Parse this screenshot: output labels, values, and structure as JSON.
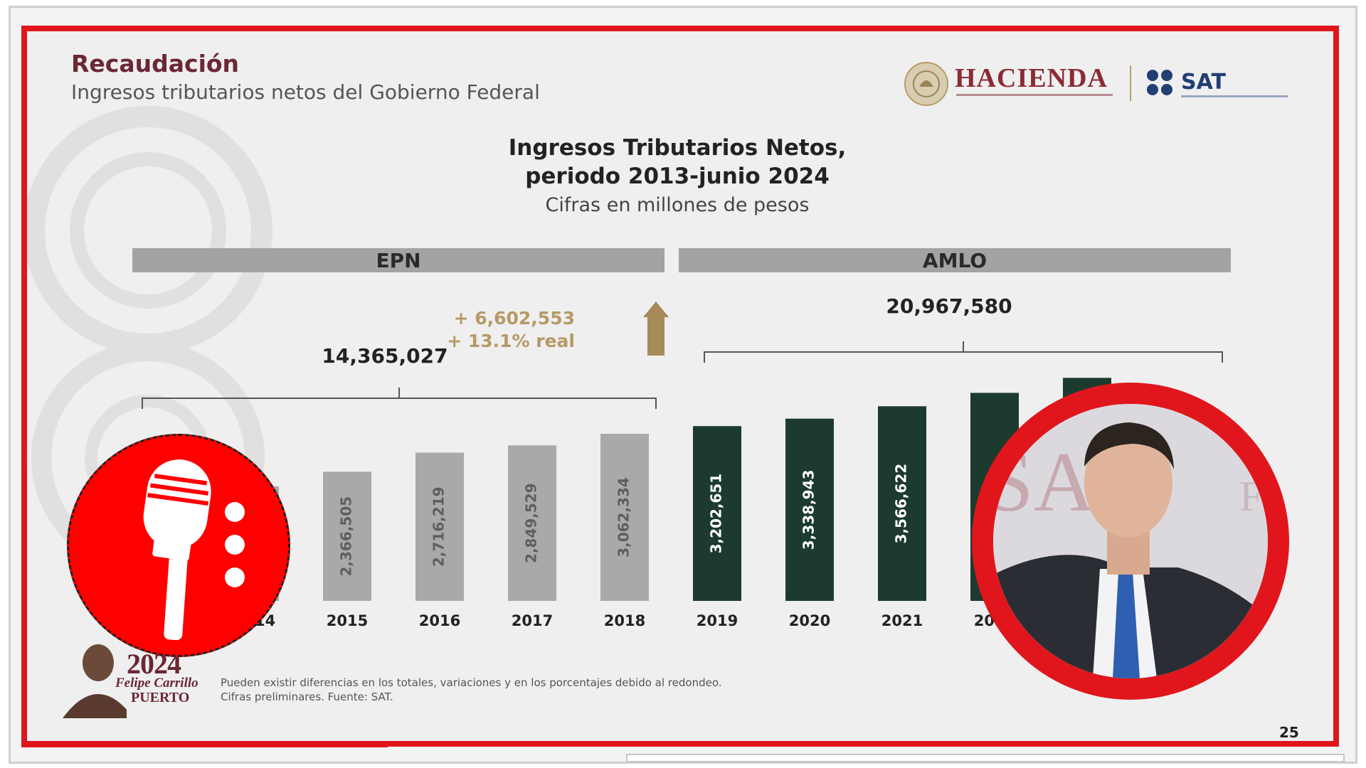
{
  "header": {
    "title": "Recaudación",
    "subtitle": "Ingresos tributarios netos del Gobierno Federal"
  },
  "logos": {
    "hacienda": "HACIENDA",
    "sat": "SAT"
  },
  "chart_data": {
    "type": "bar",
    "title": "Ingresos Tributarios Netos,",
    "title_line2": "periodo 2013-junio 2024",
    "subtitle": "Cifras en millones de pesos",
    "categories": [
      "2014",
      "2015",
      "2016",
      "2017",
      "2018",
      "2019",
      "2020",
      "2021",
      "2022"
    ],
    "values": [
      2100000,
      2366505,
      2716219,
      2849529,
      3062334,
      3202651,
      3338943,
      3566622,
      3812000
    ],
    "value_labels": [
      "",
      "2,366,505",
      "2,716,219",
      "2,849,529",
      "3,062,334",
      "3,202,651",
      "3,338,943",
      "3,566,622",
      ""
    ],
    "extra_bar_value": 4087000,
    "groups": [
      {
        "name": "EPN",
        "total": "14,365,027",
        "color": "#a9a9a9"
      },
      {
        "name": "AMLO",
        "total": "20,967,580",
        "color": "#1d3a2f"
      }
    ],
    "group_of_bar": [
      0,
      0,
      0,
      0,
      0,
      1,
      1,
      1,
      1
    ],
    "difference": {
      "line1": "+ 6,602,553",
      "line2": "+ 13.1% real",
      "color": "#b59a66"
    },
    "ylim": [
      0,
      4300000
    ],
    "grid": false
  },
  "footnote": {
    "line1": "Pueden existir diferencias en los totales, variaciones y en los porcentajes debido al redondeo.",
    "line2": "Cifras preliminares. Fuente: SAT."
  },
  "page_number": "25",
  "badge": {
    "year": "2024",
    "name": "Felipe Carrillo",
    "last": "PUERTO"
  },
  "colors": {
    "frame_red": "#e0161c",
    "title_maroon": "#6b2734",
    "epn_gray": "#a9a9a9",
    "amlo_green": "#1d3a2f",
    "gold": "#b59a66"
  }
}
